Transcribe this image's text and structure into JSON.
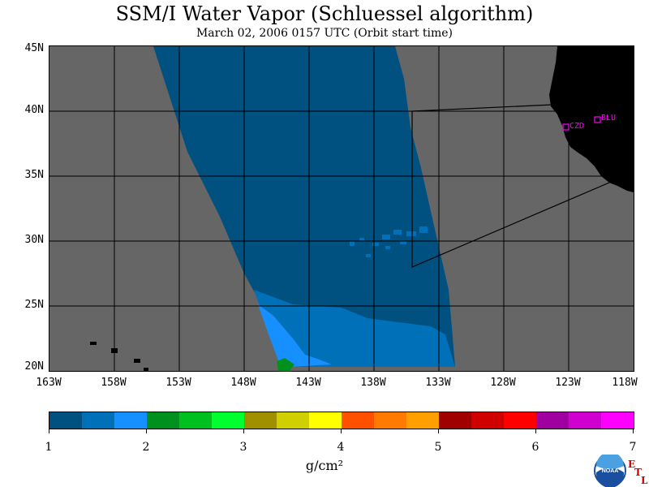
{
  "title": "SSM/I Water Vapor (Schluessel algorithm)",
  "subtitle": "March 02, 2006  0157 UTC  (Orbit start time)",
  "map": {
    "lat_labels": [
      "45N",
      "40N",
      "35N",
      "30N",
      "25N",
      "20N"
    ],
    "lon_labels": [
      "163W",
      "158W",
      "153W",
      "148W",
      "143W",
      "138W",
      "133W",
      "128W",
      "123W",
      "118W"
    ],
    "lat_range": [
      20,
      45
    ],
    "lon_range": [
      -163,
      -118
    ],
    "sites": [
      {
        "name": "CZD",
        "lon": -123.0,
        "lat": 38.6
      },
      {
        "name": "BLU",
        "lon": -120.8,
        "lat": 39.3
      }
    ],
    "colors": {
      "background": "#666666",
      "land": "#000000",
      "sites": "#ff00ff"
    }
  },
  "colorbar": {
    "ticks": [
      "1",
      "2",
      "3",
      "4",
      "5",
      "6",
      "7"
    ],
    "units": "g/cm²",
    "colors": [
      "#005080",
      "#0070b8",
      "#1690ff",
      "#00901e",
      "#00c020",
      "#00ff2e",
      "#a09000",
      "#d0d000",
      "#ffff00",
      "#ff5000",
      "#ff7a00",
      "#ffa000",
      "#a00000",
      "#d00000",
      "#ff0000",
      "#a000a0",
      "#d000d0",
      "#ff00ff"
    ]
  },
  "logo": {
    "name": "noaa-logo",
    "text": "NOAA",
    "etl_letters": [
      "E",
      "T",
      "L"
    ]
  }
}
